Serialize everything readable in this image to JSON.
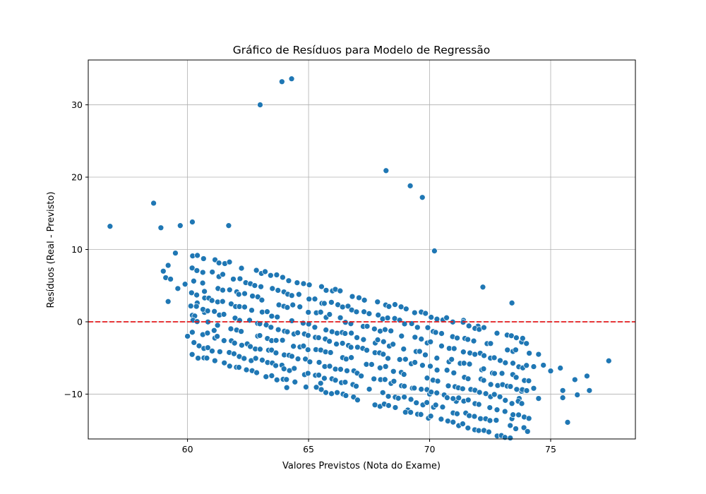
{
  "chart_data": {
    "type": "scatter",
    "title": "Gráfico de Resíduos para Modelo de Regressão",
    "xlabel": "Valores Previstos (Nota do Exame)",
    "ylabel": "Resíduos (Real - Previsto)",
    "xlim": [
      55.9,
      78.5
    ],
    "ylim": [
      -16.2,
      36.2
    ],
    "xticks": [
      60,
      65,
      70,
      75
    ],
    "yticks": [
      -10,
      0,
      10,
      20,
      30
    ],
    "xtick_labels": [
      "60",
      "65",
      "70",
      "75"
    ],
    "ytick_labels": [
      "−10",
      "0",
      "10",
      "20",
      "30"
    ],
    "grid": true,
    "reference_line": {
      "y": 0,
      "color": "#e41a1c",
      "style": "dashed"
    },
    "marker_color": "#1f77b4",
    "points": [
      [
        56.8,
        13.2
      ],
      [
        58.6,
        16.4
      ],
      [
        58.9,
        13.0
      ],
      [
        59.7,
        13.3
      ],
      [
        60.2,
        13.8
      ],
      [
        61.7,
        13.3
      ],
      [
        63.0,
        30.0
      ],
      [
        63.9,
        33.2
      ],
      [
        64.3,
        33.6
      ],
      [
        68.2,
        20.9
      ],
      [
        69.2,
        18.8
      ],
      [
        69.7,
        17.2
      ],
      [
        70.2,
        9.8
      ],
      [
        72.2,
        4.8
      ],
      [
        73.4,
        2.6
      ],
      [
        60.0,
        -2.0
      ],
      [
        61.1,
        -1.2
      ],
      [
        64.1,
        -9.1
      ],
      [
        63.9,
        -6.0
      ],
      [
        65.5,
        -8.5
      ],
      [
        69.1,
        -12.2
      ],
      [
        70.0,
        -10.0
      ],
      [
        71.1,
        -11.0
      ],
      [
        73.4,
        -13.4
      ],
      [
        73.4,
        -11.3
      ],
      [
        75.7,
        -13.9
      ],
      [
        74.5,
        -10.6
      ],
      [
        75.5,
        -10.5
      ],
      [
        76.1,
        -10.1
      ],
      [
        77.4,
        -5.4
      ],
      [
        75.4,
        -6.4
      ],
      [
        76.5,
        -7.5
      ],
      [
        76.0,
        -8.0
      ],
      [
        76.6,
        -9.5
      ],
      [
        75.5,
        -9.5
      ],
      [
        59.1,
        6.1
      ],
      [
        59.0,
        7.0
      ],
      [
        59.3,
        5.9
      ],
      [
        59.2,
        7.8
      ],
      [
        59.5,
        9.5
      ],
      [
        59.6,
        4.6
      ],
      [
        59.2,
        2.8
      ],
      [
        59.9,
        5.2
      ],
      [
        60.4,
        2.6
      ],
      [
        60.7,
        1.3
      ],
      [
        60.2,
        0.9
      ],
      [
        60.3,
        0.8
      ],
      [
        61.0,
        3.0
      ],
      [
        60.7,
        4.2
      ],
      [
        71.4,
        0.2
      ],
      [
        72.0,
        -0.6
      ],
      [
        73.8,
        -2.8
      ],
      [
        74.0,
        -3.0
      ],
      [
        74.3,
        -6.2
      ],
      [
        74.7,
        -6.0
      ],
      [
        74.3,
        -9.2
      ],
      [
        73.7,
        -10.6
      ],
      [
        73.8,
        -9.6
      ],
      [
        75.0,
        -6.8
      ],
      [
        74.5,
        -4.5
      ]
    ],
    "band": {
      "x_start": 60.2,
      "x_end": 74.2,
      "x_step": 0.22,
      "rows": [
        9.5,
        7.6,
        5.8,
        4.0,
        2.3,
        0.6,
        -1.1,
        -2.9,
        -4.6
      ],
      "slope": -0.86,
      "jitter": 0.55,
      "coverage": 0.82,
      "seed": 7
    }
  }
}
